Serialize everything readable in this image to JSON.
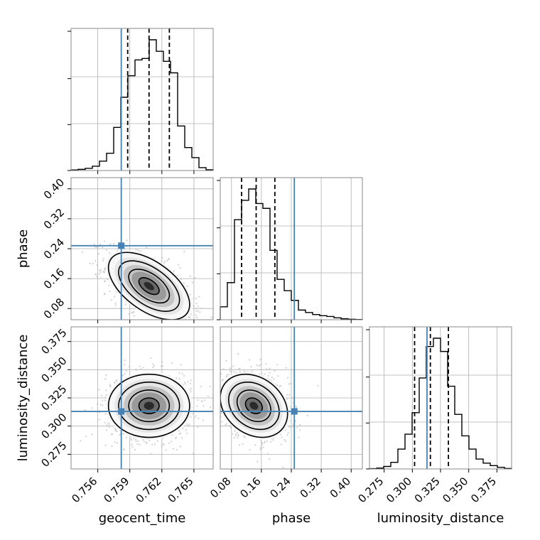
{
  "chart_data": {
    "type": "corner",
    "parameters": [
      "geocent_time",
      "phase",
      "luminosity_distance"
    ],
    "colors": {
      "truth": "#4682b4",
      "hist": "#000000",
      "grid": "#b0b0b0",
      "scatter": "#bdbdbd"
    },
    "ranges": {
      "geocent_time": [
        0.7535,
        0.7668
      ],
      "phase": [
        0.05,
        0.43
      ],
      "luminosity_distance": [
        0.262,
        0.388
      ]
    },
    "ticks": {
      "geocent_time": [
        0.756,
        0.759,
        0.762,
        0.765
      ],
      "phase": [
        0.08,
        0.16,
        0.24,
        0.32,
        0.4
      ],
      "luminosity_distance": [
        0.275,
        0.3,
        0.325,
        0.35,
        0.375
      ]
    },
    "tick_labels": {
      "geocent_time": [
        "0.756",
        "0.759",
        "0.762",
        "0.765"
      ],
      "phase": [
        "0.08",
        "0.16",
        "0.24",
        "0.32",
        "0.40"
      ],
      "luminosity_distance": [
        "0.275",
        "0.300",
        "0.325",
        "0.350",
        "0.375"
      ]
    },
    "truths": {
      "geocent_time": 0.7582,
      "phase": 0.248,
      "luminosity_distance": 0.313
    },
    "quantiles": {
      "geocent_time": [
        0.7588,
        0.7608,
        0.7627
      ],
      "phase": [
        0.107,
        0.146,
        0.196
      ],
      "luminosity_distance": [
        0.302,
        0.316,
        0.332
      ]
    },
    "means": {
      "geocent_time": 0.7608,
      "phase": 0.14,
      "luminosity_distance": 0.318
    },
    "sigmas": {
      "geocent_time": 0.0019,
      "phase": 0.045,
      "luminosity_distance": 0.014
    },
    "correlations": {
      "geocent_time|phase": -0.55,
      "geocent_time|luminosity_distance": 0.0,
      "phase|luminosity_distance": -0.25
    },
    "hist_bins": 20,
    "hist_counts": {
      "geocent_time": [
        0.4,
        0.8,
        1.5,
        3,
        6.5,
        12,
        30,
        51,
        66,
        77,
        78,
        91,
        83,
        76,
        68,
        31,
        16,
        9,
        2,
        0.5
      ],
      "phase": [
        8,
        23,
        62,
        74,
        81,
        72,
        69,
        43,
        25,
        18,
        12,
        6,
        4.5,
        3.2,
        2.5,
        2,
        1.2,
        0.6,
        0.3,
        0.15
      ],
      "luminosity_distance": [
        0.2,
        0.5,
        1.5,
        4,
        12,
        21,
        34,
        55,
        74,
        79,
        71,
        50,
        33,
        20,
        12,
        6,
        3.5,
        2,
        1,
        0.3
      ]
    }
  }
}
